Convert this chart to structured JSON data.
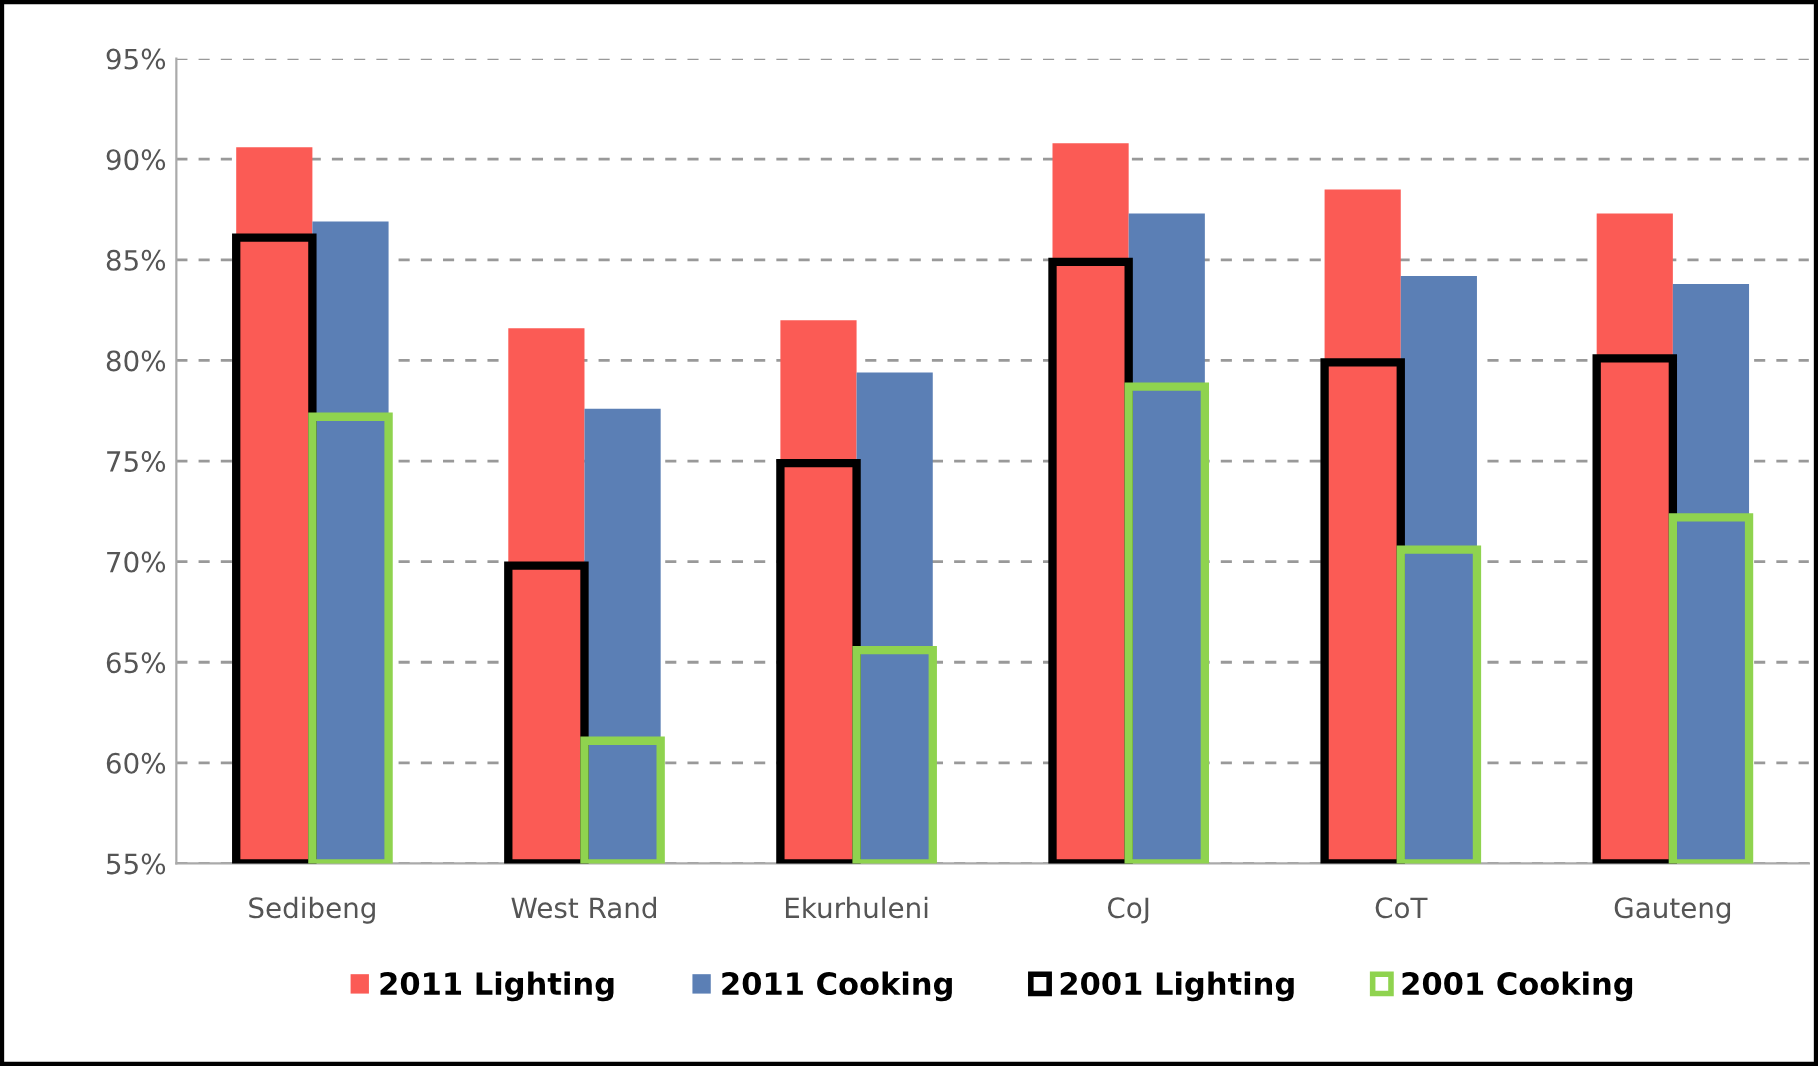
{
  "chart_data": {
    "type": "bar",
    "categories": [
      "Sedibeng",
      "West Rand",
      "Ekurhuleni",
      "CoJ",
      "CoT",
      "Gauteng"
    ],
    "series": [
      {
        "name": "2011 Lighting",
        "color": "#fb5b55",
        "values": [
          90.6,
          81.6,
          82.0,
          90.8,
          88.5,
          87.3
        ]
      },
      {
        "name": "2011 Cooking",
        "color": "#5b7fb5",
        "values": [
          86.9,
          77.6,
          79.4,
          87.3,
          84.2,
          83.8
        ]
      },
      {
        "name": "2001 Lighting",
        "color": "#000000",
        "values": [
          86.1,
          69.8,
          74.9,
          84.9,
          79.9,
          80.1
        ]
      },
      {
        "name": "2001 Cooking",
        "color": "#8fd34f",
        "values": [
          77.2,
          61.1,
          65.6,
          78.7,
          70.6,
          72.2
        ]
      }
    ],
    "ylim": [
      55,
      95
    ],
    "yticks": [
      {
        "value": 55,
        "label": "55%"
      },
      {
        "value": 60,
        "label": "60%"
      },
      {
        "value": 65,
        "label": "65%"
      },
      {
        "value": 70,
        "label": "70%"
      },
      {
        "value": 75,
        "label": "75%"
      },
      {
        "value": 80,
        "label": "80%"
      },
      {
        "value": 85,
        "label": "85%"
      },
      {
        "value": 90,
        "label": "90%"
      },
      {
        "value": 95,
        "label": "95%"
      }
    ],
    "grid": "y",
    "legend": "bottom"
  }
}
